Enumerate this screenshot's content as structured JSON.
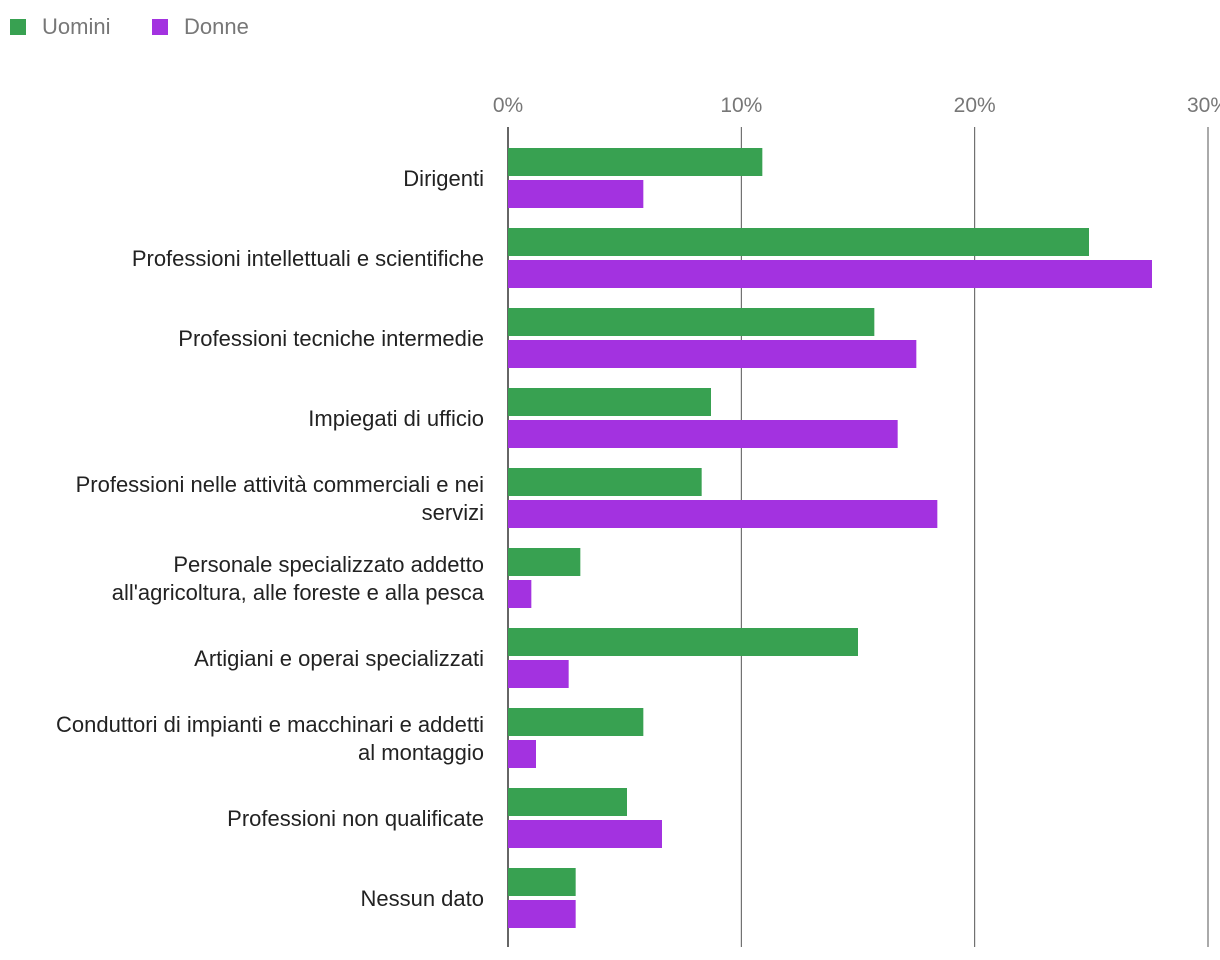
{
  "chart_data": {
    "type": "bar",
    "orientation": "horizontal",
    "categories": [
      "Dirigenti",
      "Professioni intellettuali e scientifiche",
      "Professioni tecniche intermedie",
      "Impiegati di ufficio",
      "Professioni nelle attività commerciali e nei servizi",
      "Personale specializzato addetto all'agricoltura, alle foreste e alla pesca",
      "Artigiani e operai specializzati",
      "Conduttori di impianti e macchinari e addetti al montaggio",
      "Professioni non qualificate",
      "Nessun dato"
    ],
    "category_label_lines": [
      [
        "Dirigenti"
      ],
      [
        "Professioni intellettuali e scientifiche"
      ],
      [
        "Professioni tecniche intermedie"
      ],
      [
        "Impiegati di ufficio"
      ],
      [
        "Professioni nelle attività commerciali e nei",
        "servizi"
      ],
      [
        "Personale specializzato addetto",
        "all'agricoltura, alle foreste e alla pesca"
      ],
      [
        "Artigiani e operai specializzati"
      ],
      [
        "Conduttori di impianti e macchinari e addetti",
        "al montaggio"
      ],
      [
        "Professioni non qualificate"
      ],
      [
        "Nessun dato"
      ]
    ],
    "series": [
      {
        "name": "Uomini",
        "color": "#38a151",
        "values": [
          10.9,
          24.9,
          15.7,
          8.7,
          8.3,
          3.1,
          15.0,
          5.8,
          5.1,
          2.9
        ]
      },
      {
        "name": "Donne",
        "color": "#a332e0",
        "values": [
          5.8,
          27.6,
          17.5,
          16.7,
          18.4,
          1.0,
          2.6,
          1.2,
          6.6,
          2.9
        ]
      }
    ],
    "xlim": [
      0,
      30
    ],
    "x_ticks": [
      0,
      10,
      20,
      30
    ],
    "x_tick_labels": [
      "0%",
      "10%",
      "20%",
      "30%"
    ],
    "x_axis_position": "top",
    "grid": true,
    "legend_position": "top-left",
    "title": "",
    "xlabel": "",
    "ylabel": ""
  }
}
